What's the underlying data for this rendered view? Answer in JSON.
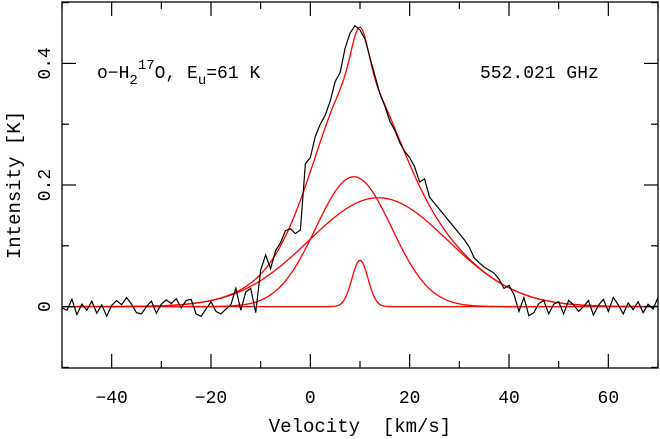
{
  "chart_data": {
    "type": "line",
    "title": "",
    "annotation_left": {
      "prefix": "o−H",
      "sub1": "2",
      "sup": "17",
      "mid": "O, E",
      "sub2": "u",
      "suffix": "=61 K"
    },
    "annotation_right": "552.021 GHz",
    "xlabel": "Velocity  [km/s]",
    "ylabel": "Intensity [K]",
    "xlim": [
      -50,
      70
    ],
    "ylim": [
      -0.101,
      0.501
    ],
    "xticks": [
      -40,
      -20,
      0,
      20,
      40,
      60
    ],
    "xtick_labels": [
      "−40",
      "−20",
      "0",
      "20",
      "40",
      "60"
    ],
    "xminor_step": 10,
    "yticks": [
      0,
      0.2,
      0.4
    ],
    "ytick_labels": [
      "0",
      "0.2",
      "0.4"
    ],
    "yminor_step": 0.1,
    "grid": false,
    "observed": {
      "color": "#000000",
      "x_start": -50,
      "x_step": 1,
      "values": [
        -0.002,
        -0.006,
        0.012,
        -0.013,
        0.004,
        -0.006,
        0.009,
        -0.011,
        0.003,
        -0.016,
        0.002,
        0.01,
        0.003,
        0.015,
        0.004,
        -0.01,
        -0.012,
        0.0,
        0.009,
        -0.011,
        0.004,
        0.011,
        0.005,
        0.013,
        -0.002,
        0.01,
        0.012,
        -0.012,
        -0.016,
        -0.004,
        0.008,
        -0.008,
        -0.012,
        -0.004,
        0.003,
        0.03,
        -0.006,
        0.024,
        0.03,
        -0.01,
        0.06,
        0.085,
        0.062,
        0.092,
        0.105,
        0.125,
        0.128,
        0.12,
        0.126,
        0.235,
        0.245,
        0.28,
        0.3,
        0.315,
        0.338,
        0.37,
        0.385,
        0.425,
        0.45,
        0.462,
        0.455,
        0.44,
        0.41,
        0.38,
        0.35,
        0.33,
        0.305,
        0.29,
        0.27,
        0.255,
        0.245,
        0.23,
        0.205,
        0.21,
        0.18,
        0.17,
        0.16,
        0.15,
        0.14,
        0.13,
        0.12,
        0.11,
        0.098,
        0.08,
        0.072,
        0.065,
        0.06,
        0.055,
        0.045,
        0.03,
        0.035,
        0.02,
        -0.008,
        0.015,
        -0.015,
        -0.01,
        0.005,
        0.01,
        -0.012,
        0.004,
        0.008,
        -0.012,
        0.01,
        0.003,
        -0.008,
        0.0,
        0.01,
        -0.014,
        0.002,
        0.012,
        -0.008,
        0.015,
        0.003,
        -0.012,
        0.006,
        -0.005,
        0.008,
        -0.01,
        0.004,
        -0.004,
        0.015
      ]
    },
    "fit": {
      "color": "#ff0000",
      "components": [
        {
          "amplitude": 0.2135,
          "center": 8.75,
          "fwhm": 18.0
        },
        {
          "amplitude": 0.179,
          "center": 13.7,
          "fwhm": 33.0
        },
        {
          "amplitude": 0.076,
          "center": 10.0,
          "fwhm": 3.8
        }
      ],
      "show_sum": true
    }
  }
}
